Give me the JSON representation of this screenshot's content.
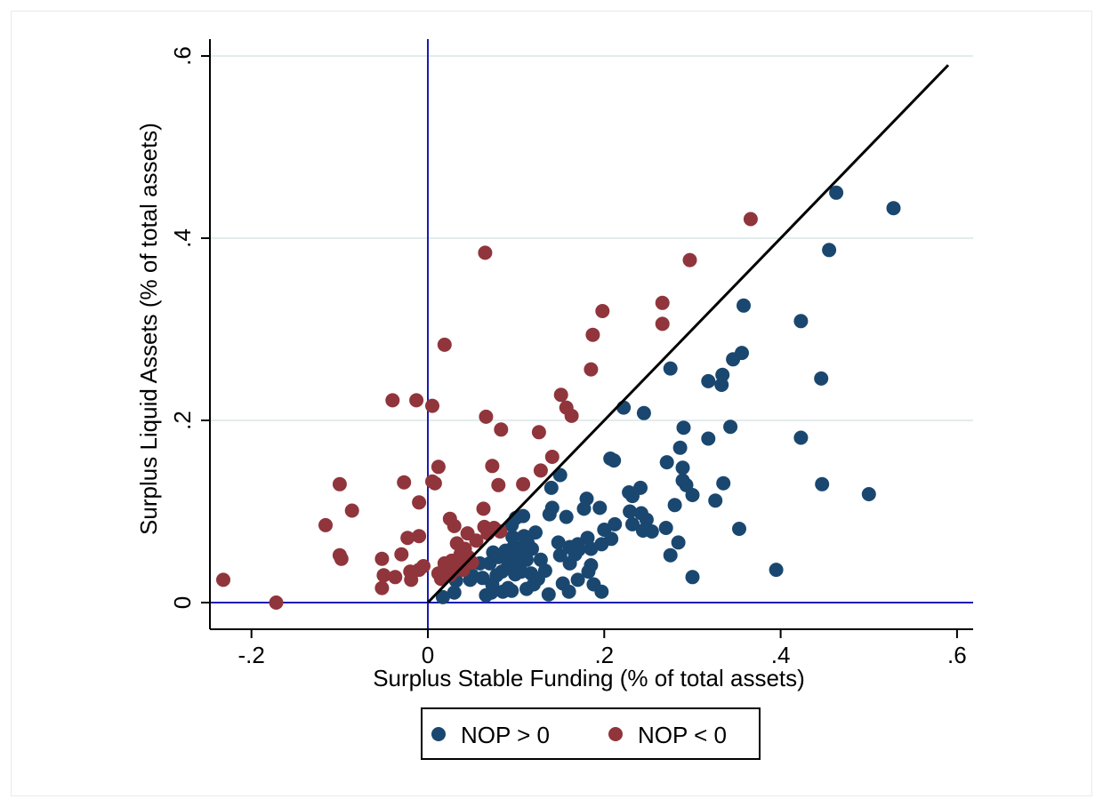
{
  "chart_data": {
    "type": "scatter",
    "title": "",
    "xlabel": "Surplus Stable Funding (% of total assets)",
    "ylabel": "Surplus Liquid Assets (% of total assets)",
    "xlim": [
      -0.24,
      0.62
    ],
    "ylim": [
      -0.01,
      0.62
    ],
    "xticks": [
      -0.2,
      0,
      0.2,
      0.4,
      0.6
    ],
    "xtick_labels": [
      "-.2",
      "0",
      ".2",
      ".4",
      ".6"
    ],
    "yticks": [
      0,
      0.2,
      0.4,
      0.6
    ],
    "ytick_labels": [
      "0",
      ".2",
      ".4",
      ".6"
    ],
    "grid": "horizontal",
    "reference_lines": {
      "x": 0,
      "y": 0,
      "color": "#1a1ab3"
    },
    "diagonal": {
      "from": [
        0,
        0
      ],
      "to": [
        0.59,
        0.59
      ],
      "color": "#000000"
    },
    "legend_position": "bottom",
    "series": [
      {
        "name": "NOP > 0",
        "color": "#1a476f",
        "points": [
          [
            0.463,
            0.45
          ],
          [
            0.528,
            0.433
          ],
          [
            0.455,
            0.387
          ],
          [
            0.358,
            0.326
          ],
          [
            0.423,
            0.309
          ],
          [
            0.446,
            0.246
          ],
          [
            0.356,
            0.274
          ],
          [
            0.346,
            0.267
          ],
          [
            0.275,
            0.257
          ],
          [
            0.334,
            0.25
          ],
          [
            0.318,
            0.243
          ],
          [
            0.333,
            0.239
          ],
          [
            0.222,
            0.214
          ],
          [
            0.245,
            0.208
          ],
          [
            0.343,
            0.193
          ],
          [
            0.29,
            0.192
          ],
          [
            0.423,
            0.181
          ],
          [
            0.318,
            0.18
          ],
          [
            0.286,
            0.17
          ],
          [
            0.207,
            0.158
          ],
          [
            0.211,
            0.156
          ],
          [
            0.271,
            0.154
          ],
          [
            0.289,
            0.148
          ],
          [
            0.15,
            0.14
          ],
          [
            0.289,
            0.134
          ],
          [
            0.447,
            0.13
          ],
          [
            0.293,
            0.129
          ],
          [
            0.335,
            0.131
          ],
          [
            0.14,
            0.126
          ],
          [
            0.241,
            0.126
          ],
          [
            0.5,
            0.119
          ],
          [
            0.3,
            0.118
          ],
          [
            0.228,
            0.121
          ],
          [
            0.232,
            0.117
          ],
          [
            0.18,
            0.114
          ],
          [
            0.326,
            0.112
          ],
          [
            0.28,
            0.107
          ],
          [
            0.195,
            0.104
          ],
          [
            0.177,
            0.103
          ],
          [
            0.141,
            0.104
          ],
          [
            0.229,
            0.1
          ],
          [
            0.242,
            0.098
          ],
          [
            0.138,
            0.097
          ],
          [
            0.157,
            0.094
          ],
          [
            0.1,
            0.093
          ],
          [
            0.108,
            0.095
          ],
          [
            0.095,
            0.085
          ],
          [
            0.232,
            0.086
          ],
          [
            0.248,
            0.091
          ],
          [
            0.212,
            0.086
          ],
          [
            0.2,
            0.08
          ],
          [
            0.244,
            0.079
          ],
          [
            0.27,
            0.082
          ],
          [
            0.353,
            0.081
          ],
          [
            0.254,
            0.078
          ],
          [
            0.122,
            0.077
          ],
          [
            0.109,
            0.073
          ],
          [
            0.096,
            0.072
          ],
          [
            0.113,
            0.066
          ],
          [
            0.181,
            0.071
          ],
          [
            0.197,
            0.064
          ],
          [
            0.208,
            0.07
          ],
          [
            0.284,
            0.066
          ],
          [
            0.148,
            0.066
          ],
          [
            0.161,
            0.061
          ],
          [
            0.17,
            0.064
          ],
          [
            0.185,
            0.059
          ],
          [
            0.097,
            0.061
          ],
          [
            0.105,
            0.06
          ],
          [
            0.088,
            0.057
          ],
          [
            0.118,
            0.059
          ],
          [
            0.074,
            0.055
          ],
          [
            0.086,
            0.052
          ],
          [
            0.15,
            0.052
          ],
          [
            0.167,
            0.053
          ],
          [
            0.171,
            0.058
          ],
          [
            0.275,
            0.052
          ],
          [
            0.112,
            0.047
          ],
          [
            0.128,
            0.047
          ],
          [
            0.094,
            0.045
          ],
          [
            0.07,
            0.043
          ],
          [
            0.059,
            0.043
          ],
          [
            0.101,
            0.04
          ],
          [
            0.161,
            0.043
          ],
          [
            0.185,
            0.041
          ],
          [
            0.09,
            0.038
          ],
          [
            0.084,
            0.034
          ],
          [
            0.078,
            0.03
          ],
          [
            0.099,
            0.031
          ],
          [
            0.117,
            0.032
          ],
          [
            0.133,
            0.035
          ],
          [
            0.182,
            0.034
          ],
          [
            0.395,
            0.036
          ],
          [
            0.062,
            0.027
          ],
          [
            0.048,
            0.025
          ],
          [
            0.032,
            0.024
          ],
          [
            0.05,
            0.03
          ],
          [
            0.125,
            0.026
          ],
          [
            0.153,
            0.021
          ],
          [
            0.17,
            0.025
          ],
          [
            0.3,
            0.028
          ],
          [
            0.073,
            0.02
          ],
          [
            0.091,
            0.016
          ],
          [
            0.112,
            0.015
          ],
          [
            0.188,
            0.02
          ],
          [
            0.072,
            0.011
          ],
          [
            0.085,
            0.012
          ],
          [
            0.095,
            0.013
          ],
          [
            0.137,
            0.009
          ],
          [
            0.16,
            0.012
          ],
          [
            0.197,
            0.012
          ],
          [
            0.03,
            0.011
          ],
          [
            0.066,
            0.008
          ],
          [
            0.017,
            0.006
          ],
          [
            0.1,
            0.048
          ],
          [
            0.08,
            0.05
          ],
          [
            0.092,
            0.056
          ],
          [
            0.106,
            0.034
          ],
          [
            0.12,
            0.02
          ]
        ]
      },
      {
        "name": "NOP < 0",
        "color": "#90353b",
        "points": [
          [
            0.366,
            0.421
          ],
          [
            0.065,
            0.384
          ],
          [
            0.297,
            0.376
          ],
          [
            0.266,
            0.329
          ],
          [
            0.198,
            0.32
          ],
          [
            0.266,
            0.306
          ],
          [
            0.187,
            0.294
          ],
          [
            0.019,
            0.283
          ],
          [
            0.185,
            0.256
          ],
          [
            0.151,
            0.228
          ],
          [
            -0.04,
            0.222
          ],
          [
            -0.013,
            0.222
          ],
          [
            0.005,
            0.216
          ],
          [
            0.157,
            0.214
          ],
          [
            0.163,
            0.205
          ],
          [
            0.066,
            0.204
          ],
          [
            0.083,
            0.19
          ],
          [
            0.126,
            0.187
          ],
          [
            0.141,
            0.16
          ],
          [
            0.012,
            0.149
          ],
          [
            0.073,
            0.15
          ],
          [
            0.128,
            0.145
          ],
          [
            -0.027,
            0.132
          ],
          [
            0.005,
            0.133
          ],
          [
            0.008,
            0.131
          ],
          [
            0.108,
            0.13
          ],
          [
            -0.1,
            0.13
          ],
          [
            0.08,
            0.129
          ],
          [
            -0.01,
            0.11
          ],
          [
            0.063,
            0.103
          ],
          [
            -0.086,
            0.101
          ],
          [
            0.025,
            0.092
          ],
          [
            -0.116,
            0.085
          ],
          [
            0.03,
            0.084
          ],
          [
            0.064,
            0.083
          ],
          [
            0.075,
            0.082
          ],
          [
            0.082,
            0.078
          ],
          [
            0.045,
            0.076
          ],
          [
            0.068,
            0.076
          ],
          [
            -0.01,
            0.073
          ],
          [
            -0.023,
            0.071
          ],
          [
            0.055,
            0.068
          ],
          [
            0.033,
            0.065
          ],
          [
            0.042,
            0.059
          ],
          [
            -0.1,
            0.052
          ],
          [
            -0.03,
            0.053
          ],
          [
            -0.098,
            0.048
          ],
          [
            -0.052,
            0.048
          ],
          [
            0.037,
            0.053
          ],
          [
            0.046,
            0.05
          ],
          [
            0.027,
            0.046
          ],
          [
            0.05,
            0.044
          ],
          [
            0.019,
            0.043
          ],
          [
            -0.005,
            0.04
          ],
          [
            0.035,
            0.04
          ],
          [
            -0.02,
            0.034
          ],
          [
            -0.01,
            0.036
          ],
          [
            0.03,
            0.035
          ],
          [
            0.04,
            0.036
          ],
          [
            0.012,
            0.032
          ],
          [
            0.025,
            0.03
          ],
          [
            -0.05,
            0.03
          ],
          [
            -0.037,
            0.028
          ],
          [
            -0.019,
            0.025
          ],
          [
            0.015,
            0.026
          ],
          [
            -0.232,
            0.025
          ],
          [
            -0.052,
            0.016
          ],
          [
            -0.172,
            0.0
          ]
        ]
      }
    ]
  },
  "legend": {
    "item1": {
      "label": "NOP > 0",
      "color": "#1a476f"
    },
    "item2": {
      "label": "NOP < 0",
      "color": "#90353b"
    }
  }
}
